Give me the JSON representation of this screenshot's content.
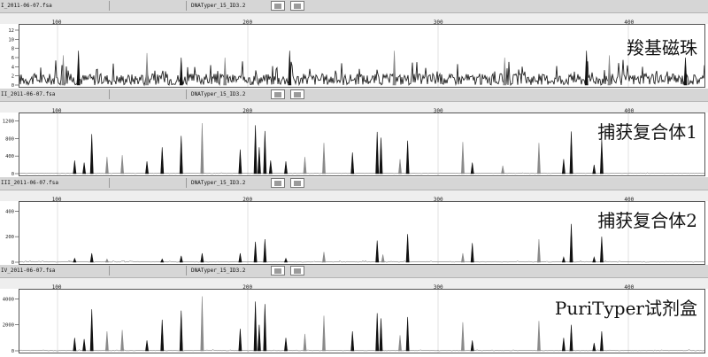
{
  "chart_data": [
    {
      "type": "line",
      "file": "I_2011-06-07.fsa",
      "kit": "DNATyper_15_ID3.2",
      "label": "羧基磁珠",
      "x_ticks": [
        100,
        200,
        300,
        400
      ],
      "y_ticks": [
        0,
        2,
        4,
        6,
        8,
        10,
        12
      ],
      "ylim": [
        0,
        12
      ],
      "xlim": [
        80,
        440
      ],
      "grid": true,
      "noise_level": 2.5,
      "peaks": [
        {
          "x": 103,
          "h": 6.5,
          "c": "gray"
        },
        {
          "x": 111,
          "h": 7.5,
          "c": "black"
        },
        {
          "x": 147,
          "h": 7.0,
          "c": "gray"
        },
        {
          "x": 165,
          "h": 6.0,
          "c": "black"
        },
        {
          "x": 188,
          "h": 6.0,
          "c": "gray"
        },
        {
          "x": 222,
          "h": 7.5,
          "c": "black"
        },
        {
          "x": 277,
          "h": 7.5,
          "c": "gray"
        },
        {
          "x": 335,
          "h": 6.0,
          "c": "gray"
        },
        {
          "x": 378,
          "h": 7.5,
          "c": "black"
        },
        {
          "x": 390,
          "h": 6.5,
          "c": "gray"
        },
        {
          "x": 430,
          "h": 6.0,
          "c": "black"
        }
      ]
    },
    {
      "type": "line",
      "file": "II_2011-06-07.fsa",
      "kit": "DNATyper_15_ID3.2",
      "label": "捕获复合体1",
      "x_ticks": [
        100,
        200,
        300,
        400
      ],
      "y_ticks": [
        0,
        400,
        800,
        1200
      ],
      "ylim": [
        0,
        1250
      ],
      "xlim": [
        80,
        440
      ],
      "grid": true,
      "noise_level": 10,
      "peaks": [
        {
          "x": 109,
          "h": 300,
          "c": "black"
        },
        {
          "x": 114,
          "h": 250,
          "c": "black"
        },
        {
          "x": 118,
          "h": 900,
          "c": "black"
        },
        {
          "x": 126,
          "h": 380,
          "c": "gray"
        },
        {
          "x": 134,
          "h": 420,
          "c": "gray"
        },
        {
          "x": 147,
          "h": 280,
          "c": "black"
        },
        {
          "x": 155,
          "h": 600,
          "c": "black"
        },
        {
          "x": 165,
          "h": 860,
          "c": "black"
        },
        {
          "x": 176,
          "h": 1150,
          "c": "gray"
        },
        {
          "x": 196,
          "h": 550,
          "c": "black"
        },
        {
          "x": 204,
          "h": 1100,
          "c": "black"
        },
        {
          "x": 206,
          "h": 600,
          "c": "black"
        },
        {
          "x": 209,
          "h": 970,
          "c": "black"
        },
        {
          "x": 212,
          "h": 300,
          "c": "black"
        },
        {
          "x": 220,
          "h": 280,
          "c": "black"
        },
        {
          "x": 230,
          "h": 380,
          "c": "gray"
        },
        {
          "x": 240,
          "h": 700,
          "c": "gray"
        },
        {
          "x": 255,
          "h": 480,
          "c": "black"
        },
        {
          "x": 268,
          "h": 950,
          "c": "black"
        },
        {
          "x": 270,
          "h": 820,
          "c": "black"
        },
        {
          "x": 280,
          "h": 330,
          "c": "gray"
        },
        {
          "x": 284,
          "h": 750,
          "c": "black"
        },
        {
          "x": 313,
          "h": 720,
          "c": "gray"
        },
        {
          "x": 318,
          "h": 250,
          "c": "black"
        },
        {
          "x": 334,
          "h": 180,
          "c": "gray"
        },
        {
          "x": 353,
          "h": 700,
          "c": "gray"
        },
        {
          "x": 366,
          "h": 330,
          "c": "black"
        },
        {
          "x": 370,
          "h": 960,
          "c": "black"
        },
        {
          "x": 382,
          "h": 200,
          "c": "black"
        },
        {
          "x": 386,
          "h": 780,
          "c": "black"
        }
      ]
    },
    {
      "type": "line",
      "file": "III_2011-06-07.fsa",
      "kit": "DNATyper_15_ID3.2",
      "label": "捕获复合体2",
      "x_ticks": [
        100,
        200,
        300,
        400
      ],
      "y_ticks": [
        0,
        200,
        400
      ],
      "ylim": [
        0,
        430
      ],
      "xlim": [
        80,
        440
      ],
      "grid": true,
      "noise_level": 6,
      "peaks": [
        {
          "x": 109,
          "h": 30,
          "c": "black"
        },
        {
          "x": 118,
          "h": 70,
          "c": "black"
        },
        {
          "x": 126,
          "h": 25,
          "c": "gray"
        },
        {
          "x": 155,
          "h": 25,
          "c": "black"
        },
        {
          "x": 165,
          "h": 50,
          "c": "black"
        },
        {
          "x": 176,
          "h": 70,
          "c": "black"
        },
        {
          "x": 196,
          "h": 70,
          "c": "black"
        },
        {
          "x": 204,
          "h": 160,
          "c": "black"
        },
        {
          "x": 209,
          "h": 180,
          "c": "black"
        },
        {
          "x": 220,
          "h": 30,
          "c": "black"
        },
        {
          "x": 240,
          "h": 80,
          "c": "gray"
        },
        {
          "x": 268,
          "h": 170,
          "c": "black"
        },
        {
          "x": 271,
          "h": 60,
          "c": "gray"
        },
        {
          "x": 284,
          "h": 220,
          "c": "black"
        },
        {
          "x": 313,
          "h": 70,
          "c": "gray"
        },
        {
          "x": 318,
          "h": 150,
          "c": "black"
        },
        {
          "x": 353,
          "h": 180,
          "c": "gray"
        },
        {
          "x": 366,
          "h": 40,
          "c": "black"
        },
        {
          "x": 370,
          "h": 300,
          "c": "black"
        },
        {
          "x": 382,
          "h": 40,
          "c": "black"
        },
        {
          "x": 386,
          "h": 200,
          "c": "black"
        }
      ]
    },
    {
      "type": "line",
      "file": "IV_2011-06-07.fsa",
      "kit": "DNATyper_15_ID3.2",
      "label": "PuriTyper试剂盒",
      "x_ticks": [
        100,
        200,
        300,
        400
      ],
      "y_ticks": [
        0,
        2000,
        4000
      ],
      "ylim": [
        0,
        4300
      ],
      "xlim": [
        80,
        440
      ],
      "grid": true,
      "noise_level": 40,
      "peaks": [
        {
          "x": 109,
          "h": 1000,
          "c": "black"
        },
        {
          "x": 114,
          "h": 900,
          "c": "black"
        },
        {
          "x": 118,
          "h": 3200,
          "c": "black"
        },
        {
          "x": 126,
          "h": 1500,
          "c": "gray"
        },
        {
          "x": 134,
          "h": 1600,
          "c": "gray"
        },
        {
          "x": 147,
          "h": 800,
          "c": "black"
        },
        {
          "x": 155,
          "h": 2400,
          "c": "black"
        },
        {
          "x": 165,
          "h": 3100,
          "c": "black"
        },
        {
          "x": 176,
          "h": 4200,
          "c": "gray"
        },
        {
          "x": 196,
          "h": 1700,
          "c": "black"
        },
        {
          "x": 204,
          "h": 3800,
          "c": "black"
        },
        {
          "x": 206,
          "h": 2000,
          "c": "black"
        },
        {
          "x": 209,
          "h": 3600,
          "c": "black"
        },
        {
          "x": 220,
          "h": 1000,
          "c": "black"
        },
        {
          "x": 230,
          "h": 1300,
          "c": "gray"
        },
        {
          "x": 240,
          "h": 2700,
          "c": "gray"
        },
        {
          "x": 255,
          "h": 1500,
          "c": "black"
        },
        {
          "x": 268,
          "h": 2900,
          "c": "black"
        },
        {
          "x": 270,
          "h": 2500,
          "c": "black"
        },
        {
          "x": 280,
          "h": 1200,
          "c": "gray"
        },
        {
          "x": 284,
          "h": 2600,
          "c": "black"
        },
        {
          "x": 313,
          "h": 2200,
          "c": "gray"
        },
        {
          "x": 318,
          "h": 800,
          "c": "black"
        },
        {
          "x": 353,
          "h": 2300,
          "c": "gray"
        },
        {
          "x": 366,
          "h": 1000,
          "c": "black"
        },
        {
          "x": 370,
          "h": 2000,
          "c": "black"
        },
        {
          "x": 382,
          "h": 600,
          "c": "black"
        },
        {
          "x": 386,
          "h": 1500,
          "c": "black"
        }
      ]
    }
  ]
}
